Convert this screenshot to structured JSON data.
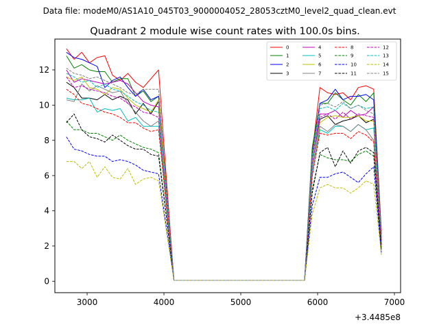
{
  "chart_data": {
    "type": "line",
    "suptitle": "Data file: modeM0/AS1A10_045T03_9000004052_28053cztM0_level2_quad_clean.evt",
    "title": "Quadrant 2 module wise count rates with 100.0s bins.",
    "xlabel": "",
    "ylabel": "",
    "x_offset_label": "+3.4485e8",
    "xlim": [
      2580,
      7080
    ],
    "ylim": [
      -0.65,
      13.75
    ],
    "xticks": [
      3000,
      4000,
      5000,
      6000,
      7000
    ],
    "xtick_labels": [
      "3000",
      "4000",
      "5000",
      "6000",
      "7000"
    ],
    "yticks": [
      0,
      2,
      4,
      6,
      8,
      10,
      12
    ],
    "ytick_labels": [
      "0",
      "2",
      "4",
      "6",
      "8",
      "10",
      "12"
    ],
    "grid": false,
    "legend_position": "top-right",
    "x": [
      2730,
      2830,
      2930,
      3030,
      3130,
      3230,
      3330,
      3430,
      3530,
      3630,
      3730,
      3830,
      3930,
      4030,
      4130,
      4230,
      4330,
      4430,
      4530,
      4630,
      4730,
      4830,
      4930,
      5030,
      5130,
      5230,
      5330,
      5430,
      5530,
      5630,
      5730,
      5830,
      5930,
      6030,
      6130,
      6230,
      6330,
      6430,
      6530,
      6630,
      6730,
      6830
    ],
    "series": [
      {
        "name": "0",
        "color": "#ff0000",
        "dash": false,
        "values": [
          13.2,
          12.6,
          13.0,
          12.4,
          12.7,
          12.8,
          11.7,
          11.4,
          11.8,
          11.3,
          11.0,
          11.5,
          12.0,
          5.9,
          0.05,
          0.05,
          0.05,
          0.05,
          0.05,
          0.05,
          0.05,
          0.05,
          0.05,
          0.05,
          0.05,
          0.05,
          0.05,
          0.05,
          0.05,
          0.05,
          0.05,
          0.05,
          7.3,
          11.0,
          10.7,
          10.6,
          10.7,
          10.3,
          11.0,
          11.1,
          10.9,
          2.8
        ]
      },
      {
        "name": "1",
        "color": "#008000",
        "dash": false,
        "values": [
          12.8,
          12.1,
          12.3,
          12.0,
          11.9,
          11.9,
          11.3,
          11.5,
          11.5,
          10.5,
          10.8,
          10.2,
          10.5,
          5.1,
          0.05,
          0.05,
          0.05,
          0.05,
          0.05,
          0.05,
          0.05,
          0.05,
          0.05,
          0.05,
          0.05,
          0.05,
          0.05,
          0.05,
          0.05,
          0.05,
          0.05,
          0.05,
          7.6,
          10.1,
          10.1,
          10.7,
          10.3,
          10.0,
          10.6,
          10.2,
          10.7,
          2.7
        ]
      },
      {
        "name": "2",
        "color": "#0000ff",
        "dash": false,
        "values": [
          13.0,
          12.7,
          12.6,
          12.4,
          12.2,
          11.0,
          11.4,
          11.6,
          11.0,
          10.5,
          10.9,
          10.3,
          10.5,
          5.4,
          0.05,
          0.05,
          0.05,
          0.05,
          0.05,
          0.05,
          0.05,
          0.05,
          0.05,
          0.05,
          0.05,
          0.05,
          0.05,
          0.05,
          0.05,
          0.05,
          0.05,
          0.05,
          7.2,
          10.1,
          10.3,
          10.9,
          10.3,
          10.5,
          10.5,
          10.6,
          10.3,
          2.6
        ]
      },
      {
        "name": "3",
        "color": "#000000",
        "dash": false,
        "values": [
          11.3,
          11.0,
          10.4,
          10.4,
          10.3,
          10.6,
          10.3,
          10.5,
          10.3,
          9.5,
          10.1,
          9.5,
          10.2,
          5.0,
          0.05,
          0.05,
          0.05,
          0.05,
          0.05,
          0.05,
          0.05,
          0.05,
          0.05,
          0.05,
          0.05,
          0.05,
          0.05,
          0.05,
          0.05,
          0.05,
          0.05,
          0.05,
          6.6,
          9.2,
          9.4,
          8.9,
          9.1,
          9.2,
          9.4,
          9.0,
          9.2,
          2.4
        ]
      },
      {
        "name": "4",
        "color": "#bf00bf",
        "dash": false,
        "values": [
          12.0,
          11.3,
          11.5,
          11.4,
          11.3,
          11.2,
          11.3,
          11.4,
          11.2,
          10.7,
          10.2,
          10.0,
          9.9,
          5.0,
          0.05,
          0.05,
          0.05,
          0.05,
          0.05,
          0.05,
          0.05,
          0.05,
          0.05,
          0.05,
          0.05,
          0.05,
          0.05,
          0.05,
          0.05,
          0.05,
          0.05,
          0.05,
          7.0,
          9.5,
          9.5,
          9.7,
          9.3,
          9.7,
          9.4,
          9.5,
          9.9,
          2.4
        ]
      },
      {
        "name": "5",
        "color": "#00bfbf",
        "dash": false,
        "values": [
          10.4,
          10.3,
          10.3,
          10.4,
          9.6,
          9.8,
          9.7,
          9.8,
          9.1,
          9.3,
          8.8,
          8.8,
          8.8,
          4.4,
          0.05,
          0.05,
          0.05,
          0.05,
          0.05,
          0.05,
          0.05,
          0.05,
          0.05,
          0.05,
          0.05,
          0.05,
          0.05,
          0.05,
          0.05,
          0.05,
          0.05,
          0.05,
          6.0,
          8.6,
          8.4,
          8.8,
          8.8,
          8.5,
          8.9,
          8.6,
          8.7,
          2.2
        ]
      },
      {
        "name": "6",
        "color": "#bfbf00",
        "dash": false,
        "values": [
          11.6,
          11.4,
          11.6,
          11.0,
          10.9,
          10.6,
          11.0,
          10.9,
          10.4,
          10.0,
          9.8,
          9.6,
          10.3,
          5.0,
          0.05,
          0.05,
          0.05,
          0.05,
          0.05,
          0.05,
          0.05,
          0.05,
          0.05,
          0.05,
          0.05,
          0.05,
          0.05,
          0.05,
          0.05,
          0.05,
          0.05,
          0.05,
          6.6,
          9.0,
          9.3,
          9.4,
          9.3,
          9.3,
          9.4,
          9.1,
          9.1,
          2.3
        ]
      },
      {
        "name": "7",
        "color": "#808080",
        "dash": false,
        "values": [
          10.3,
          10.2,
          11.2,
          10.8,
          11.1,
          10.9,
          10.7,
          10.8,
          10.1,
          9.6,
          9.1,
          8.8,
          9.1,
          4.6,
          0.05,
          0.05,
          0.05,
          0.05,
          0.05,
          0.05,
          0.05,
          0.05,
          0.05,
          0.05,
          0.05,
          0.05,
          0.05,
          0.05,
          0.05,
          0.05,
          0.05,
          0.05,
          6.3,
          8.8,
          8.5,
          8.9,
          8.8,
          8.5,
          8.9,
          8.6,
          8.0,
          2.1
        ]
      },
      {
        "name": "8",
        "color": "#ff0000",
        "dash": true,
        "values": [
          10.9,
          10.6,
          10.1,
          10.0,
          9.8,
          9.6,
          9.5,
          9.3,
          9.0,
          9.0,
          8.7,
          8.5,
          8.6,
          4.3,
          0.05,
          0.05,
          0.05,
          0.05,
          0.05,
          0.05,
          0.05,
          0.05,
          0.05,
          0.05,
          0.05,
          0.05,
          0.05,
          0.05,
          0.05,
          0.05,
          0.05,
          0.05,
          6.0,
          8.4,
          8.3,
          8.4,
          8.4,
          8.1,
          8.5,
          8.3,
          7.9,
          2.0
        ]
      },
      {
        "name": "9",
        "color": "#008000",
        "dash": true,
        "values": [
          9.1,
          8.6,
          8.6,
          8.4,
          8.4,
          8.2,
          8.0,
          8.3,
          8.0,
          7.8,
          7.6,
          7.5,
          7.3,
          3.8,
          0.05,
          0.05,
          0.05,
          0.05,
          0.05,
          0.05,
          0.05,
          0.05,
          0.05,
          0.05,
          0.05,
          0.05,
          0.05,
          0.05,
          0.05,
          0.05,
          0.05,
          0.05,
          5.2,
          7.2,
          7.0,
          6.9,
          6.9,
          6.8,
          7.2,
          7.4,
          7.1,
          1.8
        ]
      },
      {
        "name": "10",
        "color": "#0000ff",
        "dash": true,
        "values": [
          8.2,
          7.5,
          7.4,
          7.2,
          7.1,
          7.1,
          6.8,
          6.9,
          6.8,
          6.6,
          6.3,
          6.2,
          6.1,
          3.1,
          0.05,
          0.05,
          0.05,
          0.05,
          0.05,
          0.05,
          0.05,
          0.05,
          0.05,
          0.05,
          0.05,
          0.05,
          0.05,
          0.05,
          0.05,
          0.05,
          0.05,
          0.05,
          4.3,
          5.9,
          5.9,
          6.1,
          6.2,
          5.9,
          5.6,
          6.1,
          6.5,
          1.6
        ]
      },
      {
        "name": "11",
        "color": "#000000",
        "dash": true,
        "values": [
          9.0,
          9.5,
          8.6,
          8.2,
          8.1,
          7.9,
          8.3,
          8.0,
          7.7,
          7.5,
          7.5,
          7.2,
          7.1,
          3.7,
          0.05,
          0.05,
          0.05,
          0.05,
          0.05,
          0.05,
          0.05,
          0.05,
          0.05,
          0.05,
          0.05,
          0.05,
          0.05,
          0.05,
          0.05,
          0.05,
          0.05,
          0.05,
          5.0,
          7.3,
          7.6,
          6.5,
          7.4,
          6.7,
          7.4,
          7.6,
          7.3,
          1.8
        ]
      },
      {
        "name": "12",
        "color": "#bf00bf",
        "dash": true,
        "values": [
          11.6,
          11.0,
          11.1,
          10.9,
          10.8,
          10.7,
          10.5,
          10.4,
          10.1,
          9.9,
          9.6,
          9.5,
          9.3,
          4.8,
          0.05,
          0.05,
          0.05,
          0.05,
          0.05,
          0.05,
          0.05,
          0.05,
          0.05,
          0.05,
          0.05,
          0.05,
          0.05,
          0.05,
          0.05,
          0.05,
          0.05,
          0.05,
          6.6,
          9.3,
          9.5,
          9.2,
          9.6,
          9.2,
          9.5,
          9.4,
          9.3,
          2.3
        ]
      },
      {
        "name": "13",
        "color": "#00bfbf",
        "dash": true,
        "values": [
          11.8,
          11.6,
          11.3,
          11.4,
          11.0,
          11.2,
          10.9,
          10.8,
          10.5,
          10.2,
          10.0,
          9.7,
          9.6,
          4.9,
          0.05,
          0.05,
          0.05,
          0.05,
          0.05,
          0.05,
          0.05,
          0.05,
          0.05,
          0.05,
          0.05,
          0.05,
          0.05,
          0.05,
          0.05,
          0.05,
          0.05,
          0.05,
          6.9,
          9.8,
          9.9,
          9.7,
          10.1,
          9.8,
          10.0,
          9.8,
          9.9,
          2.5
        ]
      },
      {
        "name": "14",
        "color": "#bfbf00",
        "dash": true,
        "values": [
          6.8,
          6.8,
          6.4,
          6.8,
          5.9,
          6.5,
          5.9,
          5.8,
          6.4,
          5.5,
          5.8,
          5.9,
          5.7,
          2.9,
          0.05,
          0.05,
          0.05,
          0.05,
          0.05,
          0.05,
          0.05,
          0.05,
          0.05,
          0.05,
          0.05,
          0.05,
          0.05,
          0.05,
          0.05,
          0.05,
          0.05,
          0.05,
          3.8,
          5.3,
          5.5,
          5.3,
          5.3,
          5.0,
          5.3,
          5.7,
          5.5,
          1.5
        ]
      },
      {
        "name": "15",
        "color": "#808080",
        "dash": true,
        "values": [
          12.1,
          11.8,
          11.7,
          11.5,
          11.6,
          11.4,
          11.2,
          11.0,
          10.7,
          10.6,
          10.9,
          10.9,
          10.9,
          5.5,
          0.05,
          0.05,
          0.05,
          0.05,
          0.05,
          0.05,
          0.05,
          0.05,
          0.05,
          0.05,
          0.05,
          0.05,
          0.05,
          0.05,
          0.05,
          0.05,
          0.05,
          0.05,
          7.2,
          10.0,
          10.1,
          9.9,
          10.2,
          9.8,
          10.0,
          9.7,
          9.5,
          2.6
        ]
      }
    ]
  }
}
